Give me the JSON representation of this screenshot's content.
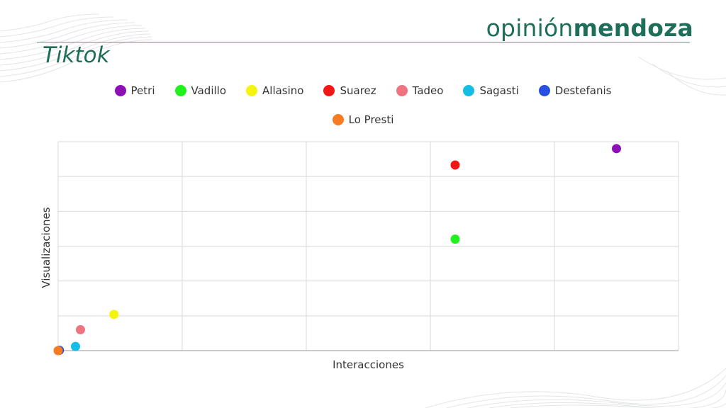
{
  "brand": {
    "light": "opinión",
    "bold": "mendoza",
    "color": "#1f6e59"
  },
  "title": "Tiktok",
  "chart_data": {
    "type": "scatter",
    "title": "Tiktok",
    "xlabel": "Interacciones",
    "ylabel": "Visualizaciones",
    "xlim": [
      0,
      5
    ],
    "ylim": [
      0,
      6
    ],
    "grid": true,
    "legend_position": "top",
    "series": [
      {
        "name": "Petri",
        "color": "#8e0fb6",
        "x": [
          4.5
        ],
        "y": [
          5.8
        ]
      },
      {
        "name": "Vadillo",
        "color": "#1ff21c",
        "x": [
          3.2
        ],
        "y": [
          3.2
        ]
      },
      {
        "name": "Allasino",
        "color": "#f4f40c",
        "x": [
          0.45
        ],
        "y": [
          1.04
        ]
      },
      {
        "name": "Suarez",
        "color": "#f41515",
        "x": [
          3.2
        ],
        "y": [
          5.33
        ]
      },
      {
        "name": "Tadeo",
        "color": "#ee747f",
        "x": [
          0.18
        ],
        "y": [
          0.6
        ]
      },
      {
        "name": "Sagasti",
        "color": "#14bde3",
        "x": [
          0.14
        ],
        "y": [
          0.12
        ]
      },
      {
        "name": "Destefanis",
        "color": "#2850de",
        "x": [
          0.01
        ],
        "y": [
          0.01
        ]
      },
      {
        "name": "Lo Presti",
        "color": "#f97b21",
        "x": [
          0.0
        ],
        "y": [
          0.0
        ]
      }
    ]
  }
}
